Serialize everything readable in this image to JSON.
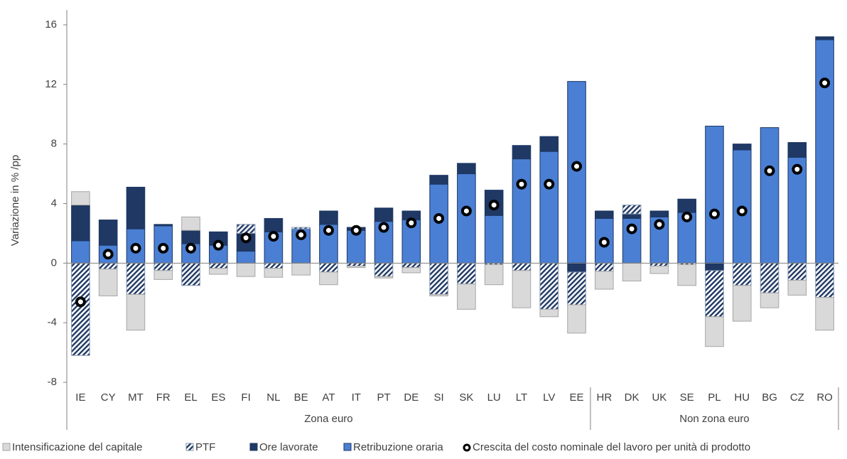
{
  "chart_data": {
    "type": "bar",
    "y_label": "Variazione in % /pp",
    "groups": [
      {
        "name": "Zona euro",
        "categories": [
          "IE",
          "CY",
          "MT",
          "FR",
          "EL",
          "ES",
          "FI",
          "NL",
          "BE",
          "AT",
          "IT",
          "PT",
          "DE",
          "SI",
          "SK",
          "LU",
          "LT",
          "LV",
          "EE"
        ]
      },
      {
        "name": "Non zona euro",
        "categories": [
          "HR",
          "DK",
          "UK",
          "SE",
          "PL",
          "HU",
          "BG",
          "CZ",
          "RO"
        ]
      }
    ],
    "series": [
      {
        "name": "Intensificazione del capitale",
        "color": "#d9d9d9",
        "values": [
          0.9,
          -1.8,
          -2.4,
          -0.6,
          0.9,
          -0.4,
          -0.9,
          -0.6,
          -0.8,
          -0.85,
          -0.1,
          -0.1,
          -0.35,
          -0.1,
          -1.7,
          -1.35,
          -2.5,
          -0.5,
          -1.9,
          -1.2,
          -1.2,
          -0.5,
          -1.4,
          -2.0,
          -2.4,
          -1.0,
          -1.0,
          -2.2
        ]
      },
      {
        "name": "PTF",
        "color": "#1f3864",
        "values": [
          -6.2,
          -0.4,
          -2.1,
          -0.5,
          -1.5,
          -0.35,
          0.6,
          -0.35,
          0.1,
          -0.6,
          -0.2,
          -0.9,
          -0.3,
          -2.1,
          -1.4,
          -0.1,
          -0.5,
          -3.1,
          -2.2,
          -0.55,
          0.6,
          -0.2,
          -0.1,
          -3.1,
          -1.5,
          -2.0,
          -1.15,
          -2.3
        ]
      },
      {
        "name": "Ore lavorate",
        "color": "#1f3864",
        "values": [
          2.4,
          1.7,
          2.8,
          0.1,
          0.9,
          0.9,
          1.2,
          0.9,
          0,
          0.9,
          0.2,
          0.9,
          0.6,
          0.6,
          0.7,
          1.7,
          0.9,
          1.0,
          -0.6,
          0.5,
          0.3,
          0.4,
          0.9,
          -0.5,
          0.4,
          0,
          1.0,
          0.2
        ]
      },
      {
        "name": "Retribuzione oraria",
        "color": "#4a7fd4",
        "values": [
          1.5,
          1.2,
          2.3,
          2.5,
          1.3,
          1.2,
          0.8,
          2.1,
          2.3,
          2.6,
          2.2,
          2.8,
          2.9,
          5.3,
          6.0,
          3.2,
          7.0,
          7.5,
          12.2,
          3.0,
          3.0,
          3.1,
          3.4,
          9.2,
          7.6,
          9.1,
          7.1,
          15.0
        ]
      }
    ],
    "dot_series": {
      "name": "Crescita del costo nominale del lavoro per unità di prodotto",
      "values": [
        -2.6,
        0.6,
        1.0,
        1.0,
        1.0,
        1.2,
        1.7,
        1.8,
        1.9,
        2.2,
        2.2,
        2.4,
        2.7,
        3.0,
        3.5,
        3.9,
        5.3,
        5.3,
        6.5,
        1.4,
        2.3,
        2.6,
        3.1,
        3.3,
        3.5,
        6.2,
        6.3,
        12.1
      ]
    },
    "ylim": [
      -8,
      17
    ],
    "yticks": [
      -8,
      -4,
      0,
      4,
      8,
      12,
      16
    ]
  }
}
